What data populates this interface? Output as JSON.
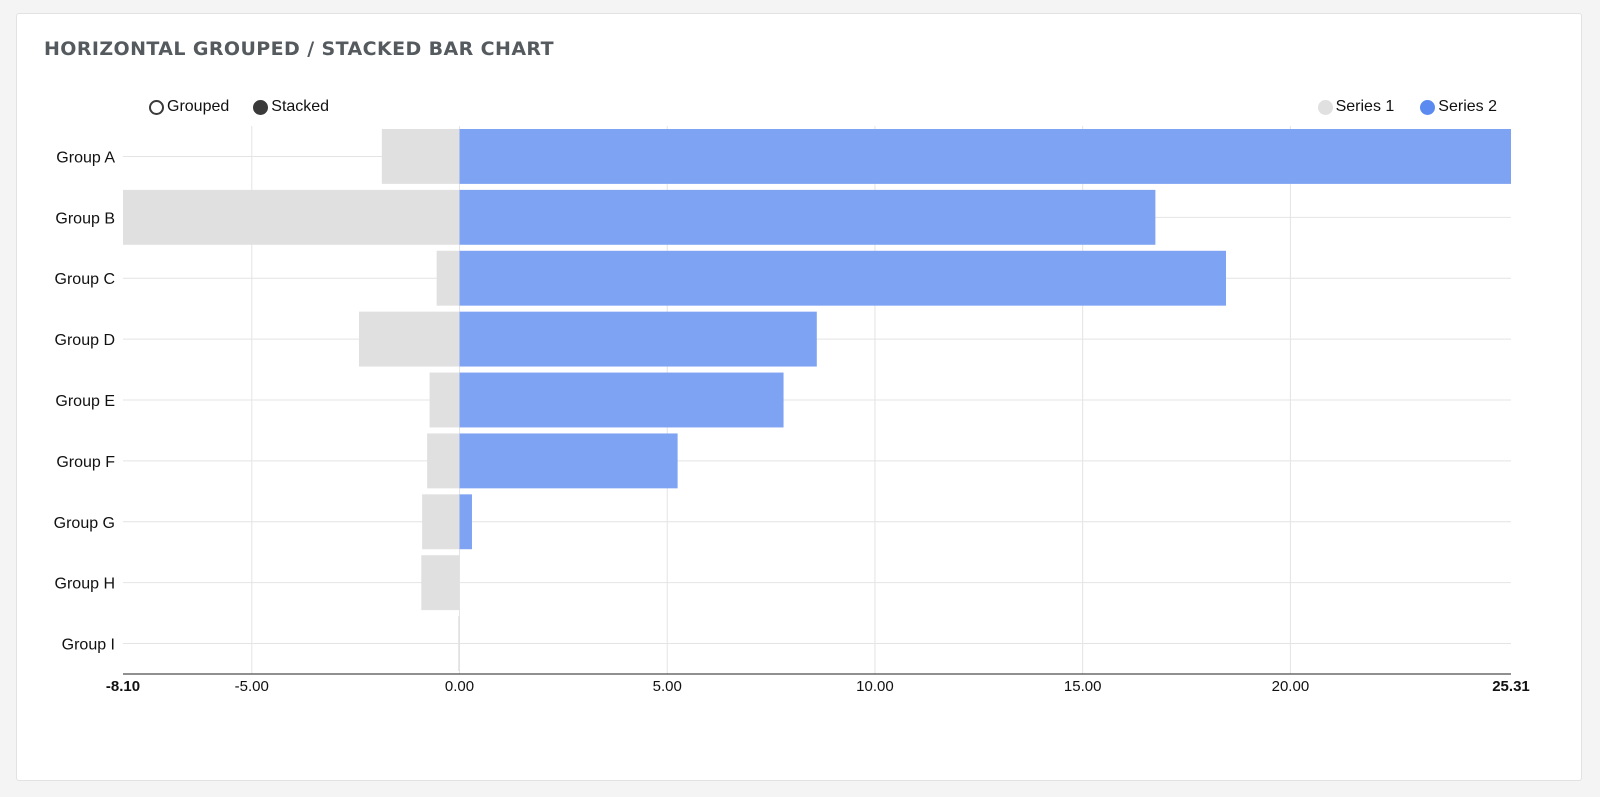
{
  "title": "HORIZONTAL GROUPED / STACKED BAR CHART",
  "controls": {
    "grouped_label": "Grouped",
    "stacked_label": "Stacked",
    "selected": "Stacked"
  },
  "colors": {
    "series1": "#e0e0e0",
    "series2": "#7ea3f3",
    "series2_legend": "#5b8bf0",
    "grid": "#e4e4e4",
    "axis": "#222222"
  },
  "chart_data": {
    "type": "bar",
    "orientation": "horizontal",
    "mode": "stacked",
    "categories": [
      "Group A",
      "Group B",
      "Group C",
      "Group D",
      "Group E",
      "Group F",
      "Group G",
      "Group H",
      "Group I"
    ],
    "series": [
      {
        "name": "Series 1",
        "values": [
          -1.87,
          -8.1,
          -0.55,
          -2.42,
          -0.72,
          -0.78,
          -0.9,
          -0.92,
          -0.03
        ]
      },
      {
        "name": "Series 2",
        "values": [
          25.31,
          16.75,
          18.45,
          8.6,
          7.8,
          5.25,
          0.3,
          0.0,
          0.0
        ]
      }
    ],
    "xlim": [
      -8.1,
      25.31
    ],
    "ticks": [
      "-8.10",
      "-5.00",
      "0.00",
      "5.00",
      "10.00",
      "15.00",
      "20.00",
      "25.31"
    ],
    "legend": [
      "Series 1",
      "Series 2"
    ],
    "legend_position": "top-right",
    "grid": true
  }
}
